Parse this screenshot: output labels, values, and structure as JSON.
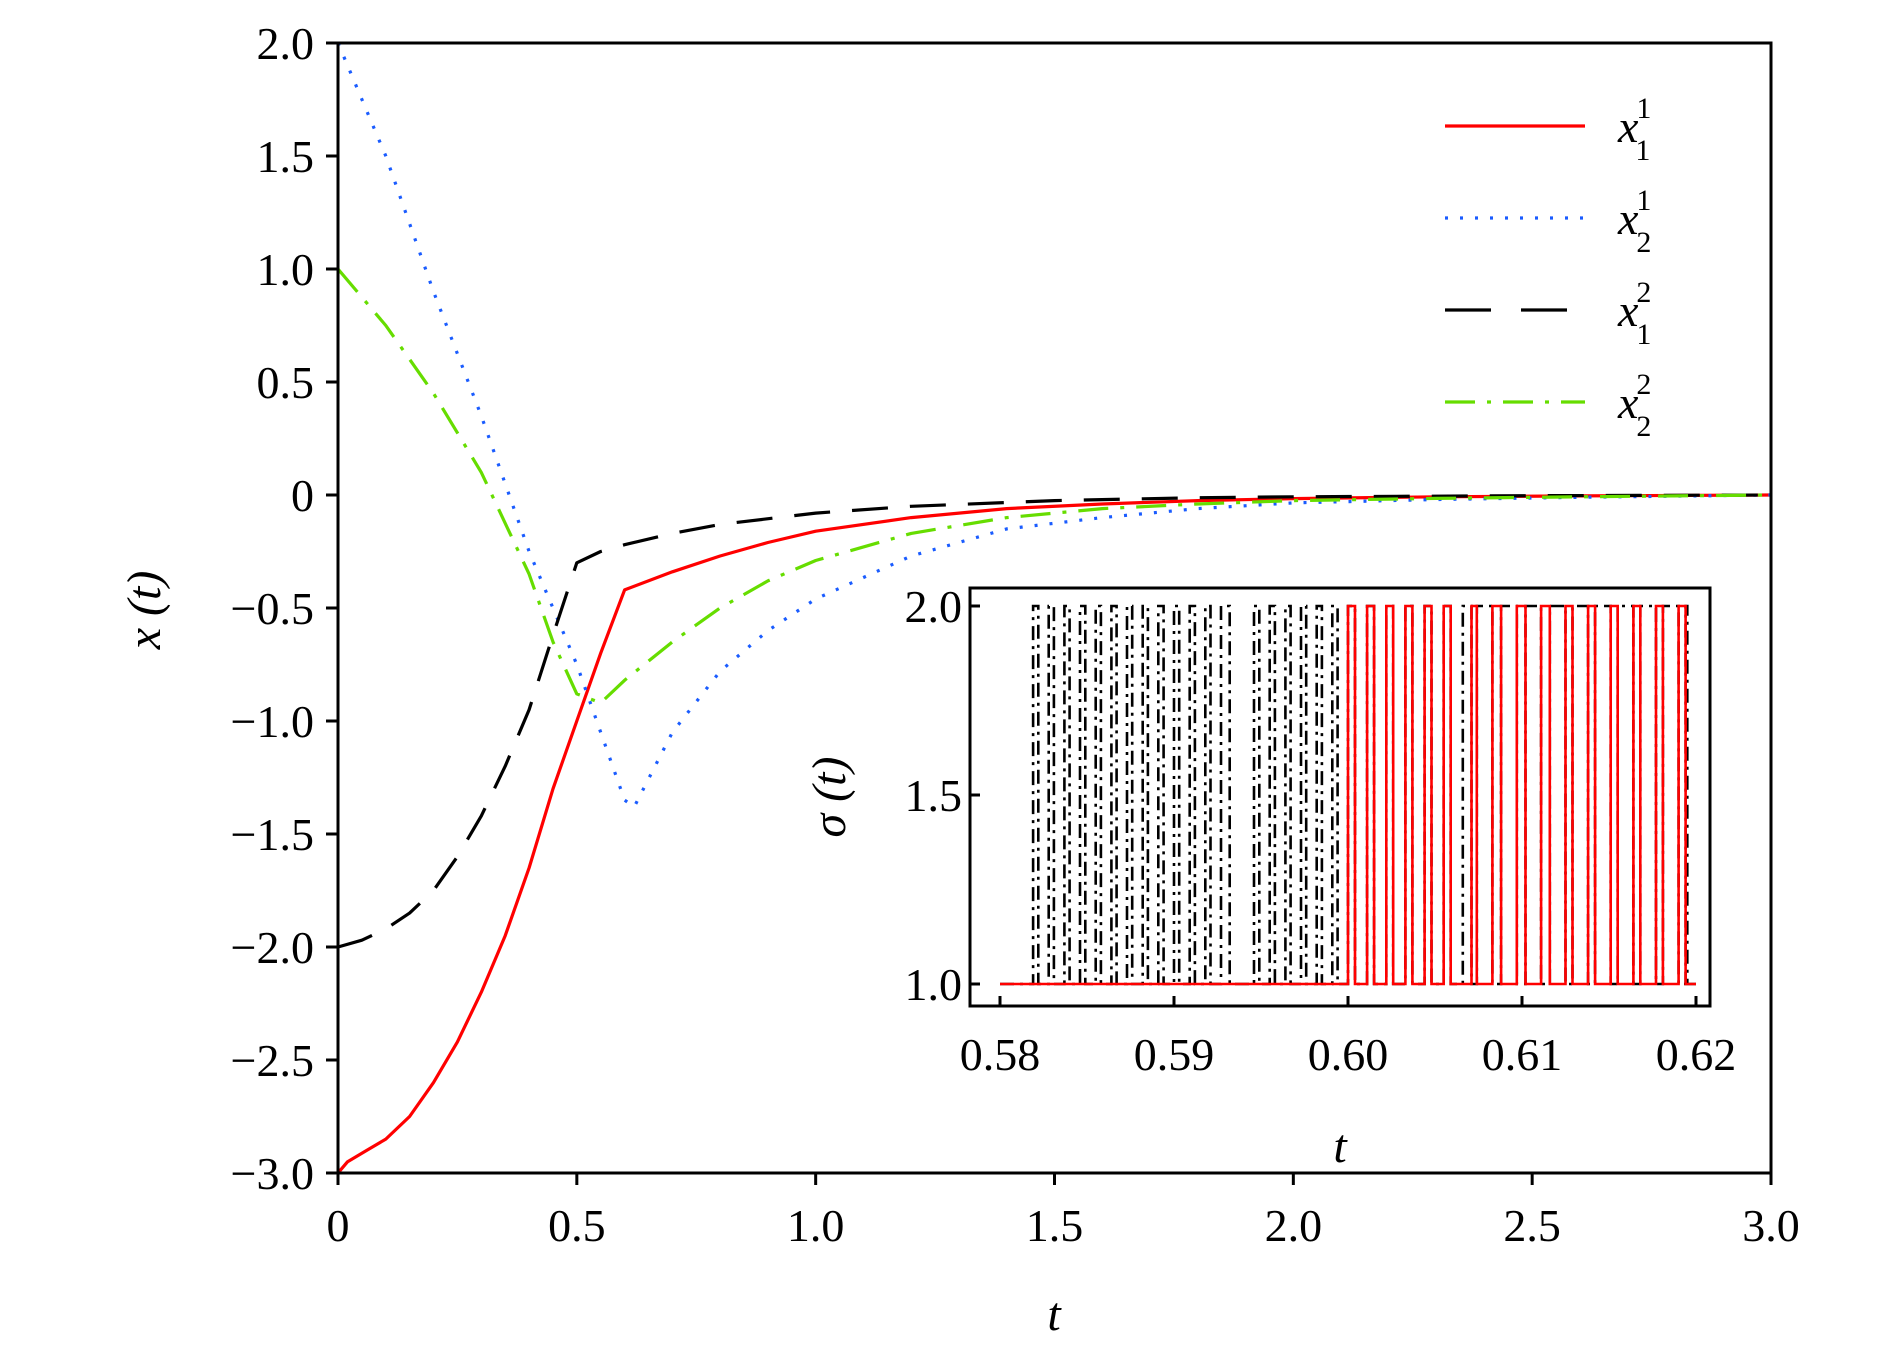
{
  "chart_data": [
    {
      "type": "line",
      "xlabel": "t",
      "ylabel": "x (t)",
      "xlim": [
        0,
        3.0
      ],
      "ylim": [
        -3.0,
        2.0
      ],
      "xticks": [
        {
          "v": 0,
          "label": "0"
        },
        {
          "v": 0.5,
          "label": "0.5"
        },
        {
          "v": 1.0,
          "label": "1.0"
        },
        {
          "v": 1.5,
          "label": "1.5"
        },
        {
          "v": 2.0,
          "label": "2.0"
        },
        {
          "v": 2.5,
          "label": "2.5"
        },
        {
          "v": 3.0,
          "label": "3.0"
        }
      ],
      "yticks": [
        {
          "v": 2.0,
          "label": "2.0"
        },
        {
          "v": 1.5,
          "label": "1.5"
        },
        {
          "v": 1.0,
          "label": "1.0"
        },
        {
          "v": 0.5,
          "label": "0.5"
        },
        {
          "v": 0,
          "label": "0"
        },
        {
          "v": -0.5,
          "label": "−0.5"
        },
        {
          "v": -1.0,
          "label": "−1.0"
        },
        {
          "v": -1.5,
          "label": "−1.5"
        },
        {
          "v": -2.0,
          "label": "−2.0"
        },
        {
          "v": -2.5,
          "label": "−2.5"
        },
        {
          "v": -3.0,
          "label": "−3.0"
        }
      ],
      "legend_position": "top-right",
      "series": [
        {
          "name": "x",
          "sub": "1",
          "sup": "1",
          "color": "#ff0000",
          "style": "solid",
          "x": [
            0,
            0.02,
            0.06,
            0.1,
            0.15,
            0.2,
            0.25,
            0.3,
            0.35,
            0.4,
            0.45,
            0.5,
            0.55,
            0.6,
            0.7,
            0.8,
            0.9,
            1.0,
            1.2,
            1.4,
            1.6,
            1.8,
            2.0,
            2.3,
            2.6,
            3.0
          ],
          "y": [
            -3.0,
            -2.95,
            -2.9,
            -2.85,
            -2.75,
            -2.6,
            -2.42,
            -2.2,
            -1.95,
            -1.65,
            -1.3,
            -1.0,
            -0.7,
            -0.42,
            -0.34,
            -0.27,
            -0.21,
            -0.16,
            -0.1,
            -0.06,
            -0.04,
            -0.025,
            -0.016,
            -0.008,
            -0.004,
            0
          ]
        },
        {
          "name": "x",
          "sub": "2",
          "sup": "1",
          "color": "#1a5cff",
          "style": "dotted",
          "x": [
            0,
            0.02,
            0.1,
            0.2,
            0.3,
            0.4,
            0.5,
            0.55,
            0.6,
            0.62,
            0.7,
            0.8,
            0.9,
            1.0,
            1.2,
            1.4,
            1.6,
            1.8,
            2.0,
            2.3,
            2.6,
            3.0
          ],
          "y": [
            2.0,
            1.9,
            1.5,
            0.9,
            0.35,
            -0.25,
            -0.75,
            -1.05,
            -1.35,
            -1.38,
            -1.05,
            -0.78,
            -0.6,
            -0.46,
            -0.27,
            -0.15,
            -0.1,
            -0.06,
            -0.035,
            -0.02,
            -0.01,
            0
          ]
        },
        {
          "name": "x",
          "sub": "1",
          "sup": "2",
          "color": "#000000",
          "style": "dashed",
          "x": [
            0,
            0.05,
            0.1,
            0.15,
            0.2,
            0.25,
            0.3,
            0.35,
            0.4,
            0.45,
            0.5,
            0.55,
            0.6,
            0.7,
            0.8,
            1.0,
            1.2,
            1.5,
            1.8,
            2.0,
            2.5,
            3.0
          ],
          "y": [
            -2.0,
            -1.97,
            -1.92,
            -1.85,
            -1.75,
            -1.6,
            -1.42,
            -1.2,
            -0.95,
            -0.62,
            -0.3,
            -0.25,
            -0.22,
            -0.17,
            -0.13,
            -0.08,
            -0.05,
            -0.025,
            -0.012,
            -0.008,
            -0.003,
            0
          ]
        },
        {
          "name": "x",
          "sub": "2",
          "sup": "2",
          "color": "#66dd00",
          "style": "dashdot",
          "x": [
            0,
            0.1,
            0.2,
            0.3,
            0.4,
            0.45,
            0.5,
            0.55,
            0.6,
            0.7,
            0.8,
            0.9,
            1.0,
            1.2,
            1.4,
            1.6,
            1.8,
            2.0,
            2.3,
            2.6,
            3.0
          ],
          "y": [
            1.0,
            0.75,
            0.45,
            0.1,
            -0.35,
            -0.65,
            -0.88,
            -0.92,
            -0.82,
            -0.65,
            -0.5,
            -0.38,
            -0.29,
            -0.17,
            -0.1,
            -0.06,
            -0.04,
            -0.025,
            -0.015,
            -0.008,
            0
          ]
        }
      ]
    },
    {
      "type": "line",
      "subtype": "step",
      "inset": true,
      "xlabel": "t",
      "ylabel": "σ (t)",
      "xlim": [
        0.58,
        0.62
      ],
      "ylim": [
        1.0,
        2.0
      ],
      "xticks": [
        {
          "v": 0.58,
          "label": "0.58"
        },
        {
          "v": 0.59,
          "label": "0.59"
        },
        {
          "v": 0.6,
          "label": "0.60"
        },
        {
          "v": 0.61,
          "label": "0.61"
        },
        {
          "v": 0.62,
          "label": "0.62"
        }
      ],
      "yticks": [
        {
          "v": 2.0,
          "label": "2.0"
        },
        {
          "v": 1.5,
          "label": "1.5"
        },
        {
          "v": 1.0,
          "label": "1.0"
        }
      ],
      "series": [
        {
          "color": "#000000",
          "style": "dashdot",
          "switch_times": [
            0.5819,
            0.5822,
            0.5828,
            0.5831,
            0.5837,
            0.584,
            0.5846,
            0.5849,
            0.5855,
            0.5858,
            0.5864,
            0.5867,
            0.5873,
            0.5876,
            0.5882,
            0.5885,
            0.5891,
            0.5894,
            0.59,
            0.5903,
            0.5909,
            0.5912,
            0.5918,
            0.5921,
            0.5927,
            0.5932,
            0.5946,
            0.5949,
            0.5955,
            0.5958,
            0.5964,
            0.5967,
            0.5973,
            0.5976,
            0.5982,
            0.5985,
            0.5991,
            0.5994,
            0.6,
            0.6004,
            0.6011,
            0.6015,
            0.6022,
            0.6026,
            0.6033,
            0.6037,
            0.6044,
            0.6048,
            0.6055,
            0.6059,
            0.6066,
            0.6071,
            0.6074,
            0.6083,
            0.6088,
            0.6097,
            0.6102,
            0.6111,
            0.6116,
            0.6125,
            0.6129,
            0.6138,
            0.6142,
            0.6151,
            0.6155,
            0.6164,
            0.6168,
            0.6177,
            0.6181,
            0.619,
            0.6194,
            0.6195
          ]
        },
        {
          "color": "#ff0000",
          "style": "solid",
          "switch_times": [
            0.6,
            0.6004,
            0.6011,
            0.6015,
            0.6022,
            0.6026,
            0.6033,
            0.6037,
            0.6044,
            0.6048,
            0.6055,
            0.6059,
            0.6071,
            0.6074,
            0.6083,
            0.6088,
            0.6097,
            0.6102,
            0.6111,
            0.6116,
            0.6125,
            0.6129,
            0.6138,
            0.6142,
            0.6151,
            0.6155,
            0.6164,
            0.6168,
            0.6177,
            0.6181,
            0.619,
            0.6194
          ]
        }
      ]
    }
  ]
}
